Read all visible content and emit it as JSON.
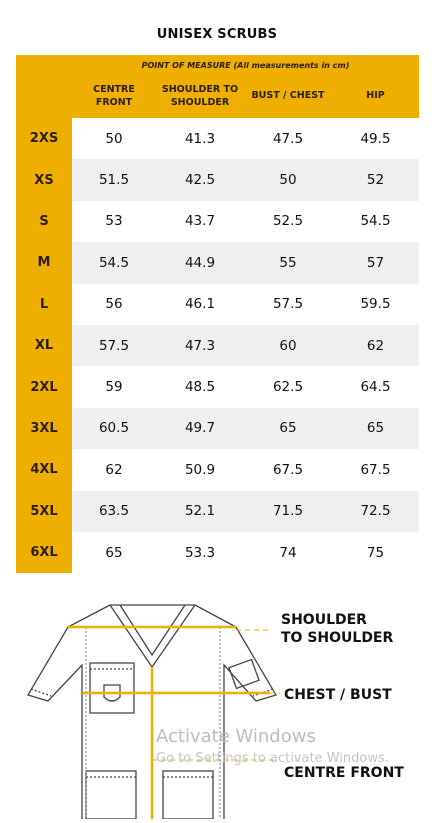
{
  "title": "UNISEX SCRUBS",
  "table": {
    "measure_header": "POINT OF MEASURE (All measurements in cm)",
    "columns": [
      {
        "line1": "CENTRE",
        "line2": "FRONT"
      },
      {
        "line1": "SHOULDER TO",
        "line2": "SHOULDER"
      },
      {
        "line1": "BUST / CHEST",
        "line2": ""
      },
      {
        "line1": "HIP",
        "line2": ""
      }
    ],
    "rows": [
      {
        "size": "2XS",
        "values": [
          "50",
          "41.3",
          "47.5",
          "49.5"
        ]
      },
      {
        "size": "XS",
        "values": [
          "51.5",
          "42.5",
          "50",
          "52"
        ]
      },
      {
        "size": "S",
        "values": [
          "53",
          "43.7",
          "52.5",
          "54.5"
        ]
      },
      {
        "size": "M",
        "values": [
          "54.5",
          "44.9",
          "55",
          "57"
        ]
      },
      {
        "size": "L",
        "values": [
          "56",
          "46.1",
          "57.5",
          "59.5"
        ]
      },
      {
        "size": "XL",
        "values": [
          "57.5",
          "47.3",
          "60",
          "62"
        ]
      },
      {
        "size": "2XL",
        "values": [
          "59",
          "48.5",
          "62.5",
          "64.5"
        ]
      },
      {
        "size": "3XL",
        "values": [
          "60.5",
          "49.7",
          "65",
          "65"
        ]
      },
      {
        "size": "4XL",
        "values": [
          "62",
          "50.9",
          "67.5",
          "67.5"
        ]
      },
      {
        "size": "5XL",
        "values": [
          "63.5",
          "52.1",
          "71.5",
          "72.5"
        ]
      },
      {
        "size": "6XL",
        "values": [
          "65",
          "53.3",
          "74",
          "75"
        ]
      }
    ]
  },
  "diagram": {
    "label_shoulder_line1": "SHOULDER",
    "label_shoulder_line2": "TO SHOULDER",
    "label_chest": "CHEST / BUST",
    "label_centre": "CENTRE FRONT"
  },
  "watermark": {
    "line1": "Activate Windows",
    "line2": "Go to Settings to activate Windows."
  },
  "colors": {
    "accent": "#eeaf00",
    "row_alt": "#efefef"
  }
}
